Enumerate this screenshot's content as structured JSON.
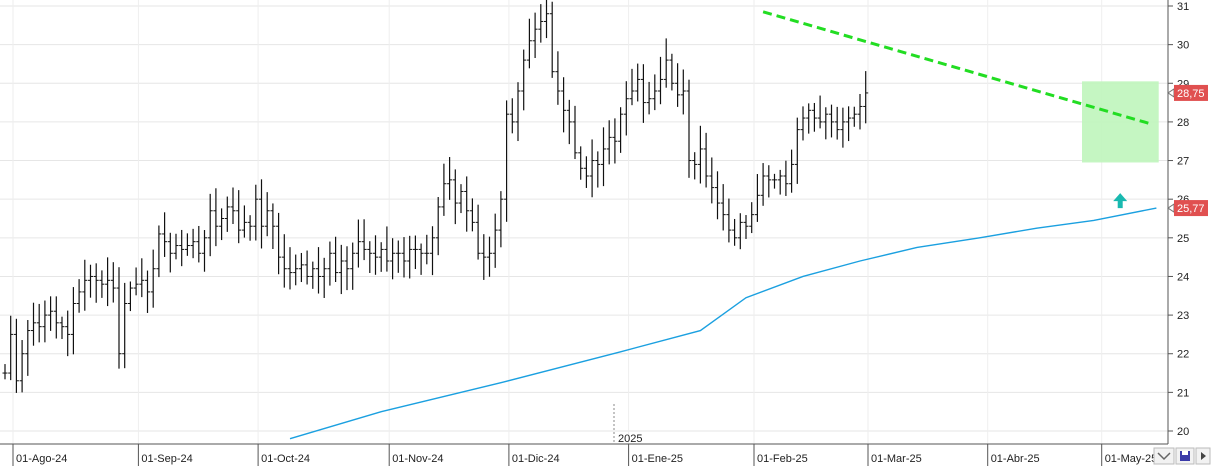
{
  "chart_data": {
    "type": "ohlc",
    "year_marker": "2025",
    "y_ticks": [
      "20",
      "21",
      "22",
      "23",
      "24",
      "25",
      "26",
      "27",
      "28",
      "29",
      "30",
      "31"
    ],
    "ylim": [
      19.7,
      31.15
    ],
    "x_ticks": [
      {
        "label": "01-Ago-24",
        "index": 0
      },
      {
        "label": "01-Sep-24",
        "index": 22
      },
      {
        "label": "01-Oct-24",
        "index": 43
      },
      {
        "label": "01-Nov-24",
        "index": 66
      },
      {
        "label": "01-Dic-24",
        "index": 87
      },
      {
        "label": "01-Ene-25",
        "index": 108
      },
      {
        "label": "01-Feb-25",
        "index": 130
      },
      {
        "label": "01-Mar-25",
        "index": 150
      },
      {
        "label": "01-Abr-25",
        "index": 171
      },
      {
        "label": "01-May-25",
        "index": 191
      }
    ],
    "grid": true,
    "last_price": {
      "label": "28,75",
      "value": 28.75,
      "color": "#e05050"
    },
    "ma_label": {
      "label": "25,77",
      "value": 25.77,
      "color": "#e05050"
    },
    "ma_series": {
      "color": "#1ba0e0",
      "points": [
        [
          50,
          19.8
        ],
        [
          66,
          20.5
        ],
        [
          87,
          21.25
        ],
        [
          108,
          22.05
        ],
        [
          122,
          22.6
        ],
        [
          130,
          23.45
        ],
        [
          140,
          24.0
        ],
        [
          150,
          24.4
        ],
        [
          160,
          24.75
        ],
        [
          171,
          25.0
        ],
        [
          181,
          25.25
        ],
        [
          191,
          25.45
        ],
        [
          202,
          25.77
        ]
      ]
    },
    "trendline": {
      "color": "#22dd22",
      "from": [
        133,
        30.85
      ],
      "to": [
        201,
        27.95
      ]
    },
    "highlight_zone": {
      "color": "#bff5bb",
      "x_from": 190,
      "x_to": 201,
      "y_low": 26.95,
      "y_high": 29.05
    },
    "arrow": {
      "color": "#19b9b0",
      "index": 196,
      "value": 26.0,
      "direction": "up"
    },
    "seed_closes": [
      21.5,
      22.5,
      21.3,
      22.0,
      22.6,
      22.8,
      22.7,
      23.0,
      23.1,
      22.8,
      22.7,
      22.5,
      23.3,
      23.6,
      23.9,
      24.0,
      23.9,
      23.8,
      23.9,
      23.7,
      22.0,
      23.3,
      23.7,
      23.8,
      23.9,
      23.6,
      24.2,
      25.1,
      24.9,
      24.6,
      24.8,
      24.7,
      24.8,
      24.9,
      24.6,
      25.0,
      25.7,
      25.3,
      25.5,
      25.8,
      25.7,
      25.2,
      25.4,
      25.3,
      26.0,
      25.3,
      25.7,
      25.3,
      24.5,
      24.2,
      24.1,
      24.2,
      24.3,
      24.0,
      24.2,
      24.0,
      24.2,
      24.6,
      24.1,
      24.4,
      24.2,
      24.6,
      24.9,
      24.7,
      24.6,
      24.5,
      24.7,
      24.4,
      24.6,
      24.6,
      24.4,
      24.7,
      24.7,
      24.6,
      24.6,
      25.0,
      25.8,
      26.4,
      26.5,
      25.9,
      26.2,
      25.7,
      25.4,
      24.6,
      24.5,
      24.6,
      25.2,
      26.0,
      28.2,
      28.0,
      28.8,
      29.6,
      30.1,
      30.4,
      30.6,
      30.8,
      29.3,
      28.8,
      28.3,
      28.0,
      27.2,
      26.8,
      26.6,
      27.0,
      26.9,
      27.3,
      27.6,
      27.5,
      28.2,
      28.6,
      28.8,
      29.1,
      28.5,
      28.6,
      28.8,
      29.1,
      29.6,
      29.0,
      28.7,
      28.8,
      27.0,
      26.9,
      27.3,
      26.6,
      26.3,
      25.9,
      25.6,
      25.2,
      25.0,
      25.4,
      25.3,
      25.6,
      26.1,
      26.6,
      26.5,
      26.5,
      26.6,
      26.4,
      26.9,
      27.8,
      28.1,
      28.3,
      28.1,
      28.0,
      28.2,
      28.0,
      27.8,
      28.0,
      28.1,
      28.2,
      28.4,
      28.75
    ]
  },
  "toolbar": {
    "scroll_left_icon": "chevron-down-icon",
    "save_icon": "save-icon",
    "arrow_icon": "chevron-right-icon"
  }
}
